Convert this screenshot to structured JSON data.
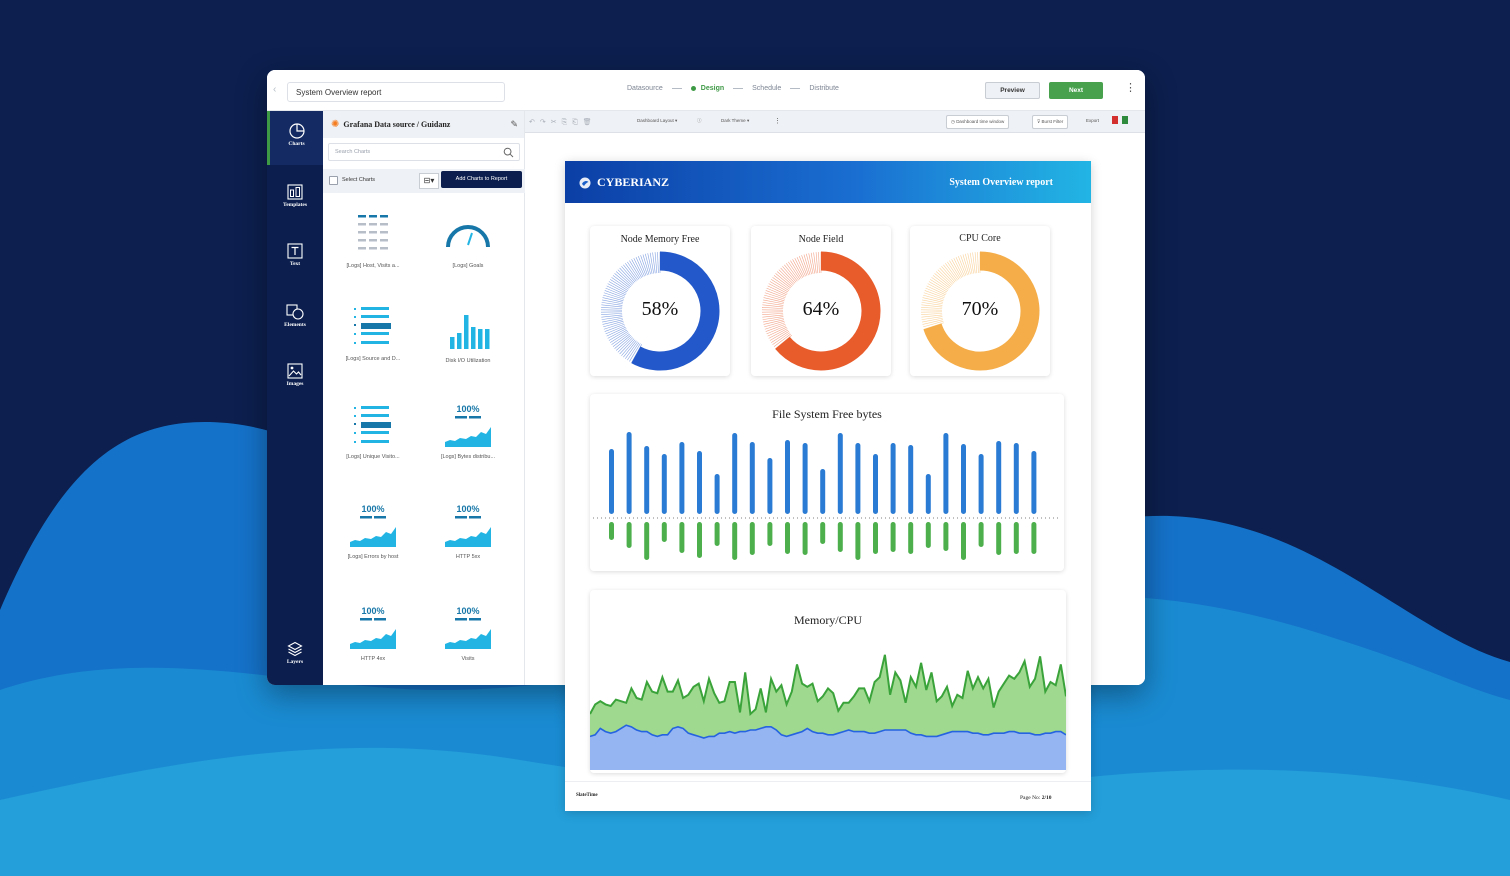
{
  "app": {
    "report_name": "System Overview report",
    "steps": [
      {
        "label": "Datasource",
        "active": false
      },
      {
        "label": "Design",
        "active": true
      },
      {
        "label": "Schedule",
        "active": false
      },
      {
        "label": "Distribute",
        "active": false
      }
    ],
    "preview_label": "Preview",
    "next_label": "Next"
  },
  "sidebar": {
    "items": [
      {
        "label": "Charts",
        "icon": "pie-chart-icon",
        "active": true
      },
      {
        "label": "Templates",
        "icon": "template-icon"
      },
      {
        "label": "Text",
        "icon": "text-icon"
      },
      {
        "label": "Elements",
        "icon": "shapes-icon"
      },
      {
        "label": "Images",
        "icon": "image-icon"
      },
      {
        "label": "Layers",
        "icon": "layers-icon"
      }
    ]
  },
  "charts_panel": {
    "datasource": "Grafana Data source / Guidanz",
    "search_placeholder": "Search Charts",
    "select_label": "Select Charts",
    "add_button": "Add Charts to Report",
    "tiles": [
      {
        "label": "[Logs] Host, Visits a...",
        "thumb": "table"
      },
      {
        "label": "[Logs] Goals",
        "thumb": "gauge"
      },
      {
        "label": "[Logs] Source and D...",
        "thumb": "list"
      },
      {
        "label": "Disk I/O Utilization",
        "thumb": "bars"
      },
      {
        "label": "[Logs] Unique Visito...",
        "thumb": "list"
      },
      {
        "label": "[Logs] Bytes distribu...",
        "thumb": "stat",
        "stat": "100%"
      },
      {
        "label": "[Logs] Errors by host",
        "thumb": "stat",
        "stat": "100%"
      },
      {
        "label": "HTTP 5xx",
        "thumb": "stat",
        "stat": "100%"
      },
      {
        "label": "HTTP 4xx",
        "thumb": "stat",
        "stat": "100%"
      },
      {
        "label": "Visits",
        "thumb": "stat",
        "stat": "100%"
      }
    ]
  },
  "toolbar": {
    "layout": "Dashboard Layout",
    "theme": "Dark Theme",
    "time_window": "Dashboard time window",
    "burst_filter": "Burst Filter",
    "export": "Export"
  },
  "report": {
    "brand": "CYBERIANZ",
    "title": "System Overview report",
    "footer_left": "SlateTime",
    "footer_page_prefix": "Page No:",
    "footer_page": "2/10"
  },
  "colors": {
    "accent_green": "#47a14d",
    "navy": "#0b1e4d",
    "donut_blue": "#2258c9",
    "donut_orange": "#e85b2b",
    "donut_yellow": "#f4ad48",
    "bar_blue": "#2a7bd3",
    "bar_green": "#4caf4c",
    "area_green": "#9fd88f",
    "area_blue": "#94b4f2"
  },
  "chart_data": [
    {
      "type": "pie",
      "title": "Node Memory Free",
      "values": [
        58,
        42
      ],
      "label": "58%"
    },
    {
      "type": "pie",
      "title": "Node Field",
      "values": [
        64,
        36
      ],
      "label": "64%"
    },
    {
      "type": "pie",
      "title": "CPU Core",
      "values": [
        70,
        30
      ],
      "label": "70%"
    },
    {
      "type": "bar",
      "title": "File System Free bytes",
      "series": [
        {
          "values": [
            65,
            82,
            68,
            60,
            72,
            63,
            40,
            81,
            72,
            56,
            74,
            71,
            45,
            81,
            71,
            60,
            71,
            69,
            40,
            81,
            70,
            60,
            73,
            71,
            63
          ]
        },
        {
          "values": [
            -18,
            -26,
            -38,
            -20,
            -31,
            -36,
            -24,
            -38,
            -33,
            -24,
            -32,
            -33,
            -22,
            -30,
            -38,
            -32,
            -30,
            -32,
            -26,
            -29,
            -38,
            -25,
            -33,
            -32,
            -32
          ]
        }
      ]
    },
    {
      "type": "area",
      "title": "Memory/CPU",
      "series": [
        {
          "values": [
            60,
            66,
            68,
            66,
            65,
            69,
            68,
            67,
            76,
            70,
            69,
            80,
            74,
            73,
            83,
            74,
            74,
            81,
            70,
            72,
            77,
            79,
            68,
            82,
            73,
            67,
            68,
            80,
            80,
            61,
            86,
            60,
            63,
            76,
            61,
            82,
            74,
            78,
            66,
            74,
            91,
            79,
            77,
            79,
            68,
            71,
            76,
            73,
            62,
            67,
            67,
            71,
            76,
            76,
            68,
            80,
            83,
            97,
            72,
            86,
            81,
            67,
            83,
            77,
            92,
            75,
            86,
            68,
            71,
            77,
            65,
            72,
            70,
            87,
            76,
            83,
            76,
            82,
            64,
            74,
            79,
            84,
            82,
            86,
            93,
            77,
            82,
            96,
            74,
            80,
            78,
            91,
            71
          ]
        },
        {
          "values": [
            46,
            47,
            51,
            49,
            48,
            49,
            51,
            53,
            52,
            50,
            49,
            49,
            47,
            46,
            47,
            47,
            51,
            52,
            51,
            48,
            47,
            46,
            45,
            46,
            46,
            48,
            48,
            49,
            48,
            49,
            49,
            50,
            50,
            51,
            52,
            52,
            50,
            47,
            46,
            47,
            48,
            49,
            51,
            49,
            48,
            48,
            47,
            47,
            48,
            49,
            50,
            49,
            49,
            49,
            48,
            48,
            49,
            50,
            50,
            50,
            50,
            50,
            48,
            47,
            47,
            46,
            46,
            46,
            47,
            48,
            49,
            49,
            49,
            49,
            48,
            48,
            47,
            47,
            48,
            48,
            48,
            49,
            49,
            48,
            48,
            48,
            47,
            47,
            48,
            48,
            49,
            49,
            47
          ]
        }
      ]
    }
  ]
}
